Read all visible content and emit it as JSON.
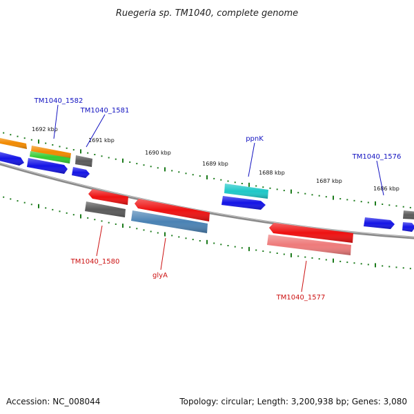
{
  "header": {
    "title": "Ruegeria sp. TM1040, complete genome"
  },
  "footer": {
    "accession": "Accession: NC_008044",
    "summary": "Topology: circular; Length: 3,200,938 bp; Genes: 3,080"
  },
  "scale": {
    "tick_labels": [
      "1692 kbp",
      "1691 kbp",
      "1690 kbp",
      "1689 kbp",
      "1688 kbp",
      "1687 kbp",
      "1686 kbp"
    ]
  },
  "genes": {
    "forward_labels": [
      "TM1040_1582",
      "TM1040_1581",
      "ppnK",
      "TM1040_1576"
    ],
    "reverse_labels": [
      "TM1040_1580",
      "glyA",
      "TM1040_1577"
    ]
  },
  "colors": {
    "backbone": "#808080",
    "tick": "#1a7a1a",
    "forward_label": "#1010c0",
    "reverse_label": "#cc1010",
    "blue": "#1414e6",
    "red": "#ee1111",
    "orange": "#f28a00",
    "green": "#33cc33",
    "gray": "#5a5a5a",
    "cyan": "#1ec8c8",
    "steel": "#4a82b4",
    "pink": "#ee7a7a"
  }
}
